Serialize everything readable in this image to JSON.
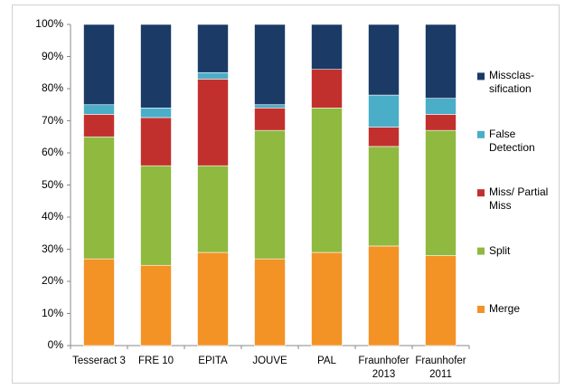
{
  "chart_data": {
    "type": "stacked_bar",
    "categories": [
      "Tesseract 3",
      "FRE 10",
      "EPITA",
      "JOUVE",
      "PAL",
      "Fraunhofer 2013",
      "Fraunhofer 2011"
    ],
    "series": [
      {
        "name": "Merge",
        "color": "#f39225",
        "values": [
          27,
          25,
          29,
          27,
          29,
          31,
          28
        ]
      },
      {
        "name": "Split",
        "color": "#8fb93f",
        "values": [
          38,
          31,
          27,
          40,
          45,
          31,
          39
        ]
      },
      {
        "name": "Miss/ Partial Miss",
        "color": "#c2302e",
        "values": [
          7,
          15,
          27,
          7,
          12,
          6,
          5
        ]
      },
      {
        "name": "False Detection",
        "color": "#4aaec9",
        "values": [
          3,
          3,
          2,
          1,
          0,
          10,
          5
        ]
      },
      {
        "name": "Missclas-sification",
        "color": "#1b3a66",
        "values": [
          25,
          26,
          15,
          25,
          14,
          22,
          23
        ]
      }
    ],
    "ylim": [
      0,
      100
    ],
    "yticks": [
      {
        "value": 0,
        "label": "0%"
      },
      {
        "value": 10,
        "label": "10%"
      },
      {
        "value": 20,
        "label": "20%"
      },
      {
        "value": 30,
        "label": "30%"
      },
      {
        "value": 40,
        "label": "40%"
      },
      {
        "value": 50,
        "label": "50%"
      },
      {
        "value": 60,
        "label": "60%"
      },
      {
        "value": 70,
        "label": "70%"
      },
      {
        "value": 80,
        "label": "80%"
      },
      {
        "value": 90,
        "label": "90%"
      },
      {
        "value": 100,
        "label": "100%"
      }
    ],
    "legend": "right"
  }
}
